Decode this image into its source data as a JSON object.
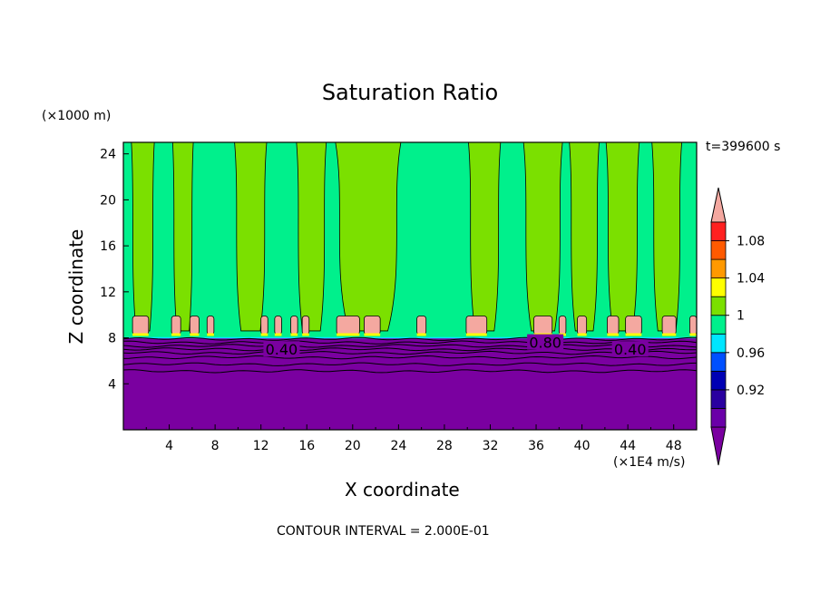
{
  "chart_data": {
    "type": "heatmap",
    "title": "Saturation Ratio",
    "xlabel": "X coordinate",
    "ylabel": "Z coordinate",
    "x_unit": "(×1E4 m/s)",
    "y_unit": "(×1000 m)",
    "time_label": "t=399600 s",
    "footer": "CONTOUR INTERVAL = 2.000E-01",
    "xlim": [
      0,
      50
    ],
    "ylim": [
      0,
      25
    ],
    "x_ticks": [
      4,
      8,
      12,
      16,
      20,
      24,
      28,
      32,
      36,
      40,
      44,
      48
    ],
    "y_ticks": [
      4,
      8,
      12,
      16,
      20,
      24
    ],
    "colorbar": {
      "labels": [
        {
          "value": 1.08,
          "text": "1.08"
        },
        {
          "value": 1.04,
          "text": "1.04"
        },
        {
          "value": 1.0,
          "text": "1"
        },
        {
          "value": 0.96,
          "text": "0.96"
        },
        {
          "value": 0.92,
          "text": "0.92"
        }
      ],
      "bands": [
        {
          "from": 0.88,
          "to": 0.9,
          "color": "#6a00a8"
        },
        {
          "from": 0.9,
          "to": 0.92,
          "color": "#2a00a0"
        },
        {
          "from": 0.92,
          "to": 0.94,
          "color": "#0000b4"
        },
        {
          "from": 0.94,
          "to": 0.96,
          "color": "#0050ff"
        },
        {
          "from": 0.96,
          "to": 0.98,
          "color": "#00e6ff"
        },
        {
          "from": 0.98,
          "to": 1.0,
          "color": "#00f08c"
        },
        {
          "from": 1.0,
          "to": 1.02,
          "color": "#7be000"
        },
        {
          "from": 1.02,
          "to": 1.04,
          "color": "#ffff00"
        },
        {
          "from": 1.04,
          "to": 1.06,
          "color": "#ff9900"
        },
        {
          "from": 1.06,
          "to": 1.08,
          "color": "#ff5a00"
        },
        {
          "from": 1.08,
          "to": 1.1,
          "color": "#ff2020"
        }
      ],
      "low_color": "#7a00a0",
      "high_color": "#f4a8a0"
    },
    "fields": {
      "dry_layer": {
        "from_z": 0,
        "to_z": 8.0,
        "color": "#7a00a0"
      },
      "upper_background": {
        "color": "#00f08c"
      },
      "supersat_plumes": {
        "color": "#7be000",
        "x_ranges": [
          [
            0.7,
            2.7
          ],
          [
            4.3,
            6.1
          ],
          [
            9.7,
            12.5
          ],
          [
            15.1,
            17.7
          ],
          [
            18.5,
            24.2
          ],
          [
            30.1,
            32.9
          ],
          [
            34.9,
            38.3
          ],
          [
            38.9,
            41.5
          ],
          [
            42.1,
            45.0
          ],
          [
            46.1,
            48.7
          ]
        ]
      },
      "peak_cells": {
        "color": "#f4a8a0",
        "x_ranges": [
          [
            0.8,
            2.2
          ],
          [
            4.2,
            5.0
          ],
          [
            5.8,
            6.6
          ],
          [
            7.3,
            7.9
          ],
          [
            12.0,
            12.6
          ],
          [
            13.2,
            13.8
          ],
          [
            14.6,
            15.2
          ],
          [
            15.6,
            16.2
          ],
          [
            18.6,
            20.6
          ],
          [
            21.0,
            22.4
          ],
          [
            25.6,
            26.4
          ],
          [
            29.9,
            31.7
          ],
          [
            35.8,
            37.4
          ],
          [
            38.0,
            38.6
          ],
          [
            39.6,
            40.4
          ],
          [
            42.2,
            43.2
          ],
          [
            43.8,
            45.2
          ],
          [
            47.0,
            48.2
          ],
          [
            49.4,
            50.0
          ]
        ]
      },
      "contours": [
        {
          "z": 7.0,
          "label": "0.40",
          "label_x": [
            13.8,
            44.2
          ]
        },
        {
          "z": 7.6,
          "label": "0.80",
          "label_x": [
            36.8
          ]
        }
      ]
    }
  }
}
